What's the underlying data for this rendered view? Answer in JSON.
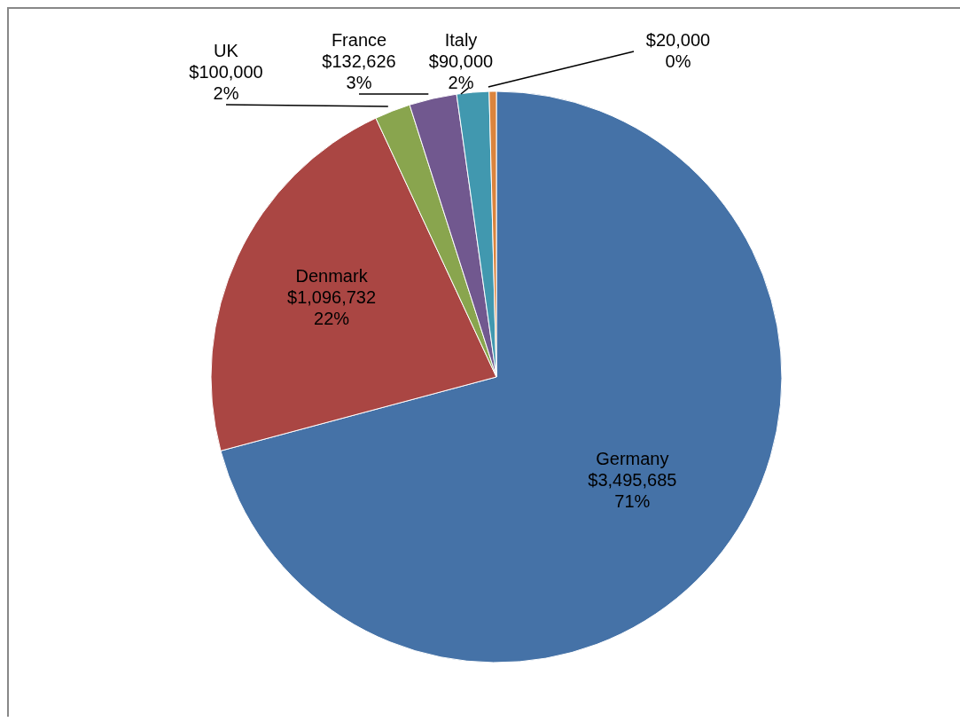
{
  "chart_data": {
    "type": "pie",
    "categories": [
      "Germany",
      "Denmark",
      "UK",
      "France",
      "Italy",
      null
    ],
    "values": [
      3495685,
      1096732,
      100000,
      132626,
      90000,
      20000
    ],
    "value_labels": [
      "$3,495,685\n71%",
      "$1,096,732\n22%",
      "$100,000\n2%",
      "$132,626\n3%",
      "$90,000\n2%",
      "$20,000\n0%"
    ],
    "colors": [
      "#4572a7",
      "#aa4643",
      "#89a54e",
      "#71588f",
      "#4198af",
      "#db843d"
    ],
    "legend": false
  }
}
